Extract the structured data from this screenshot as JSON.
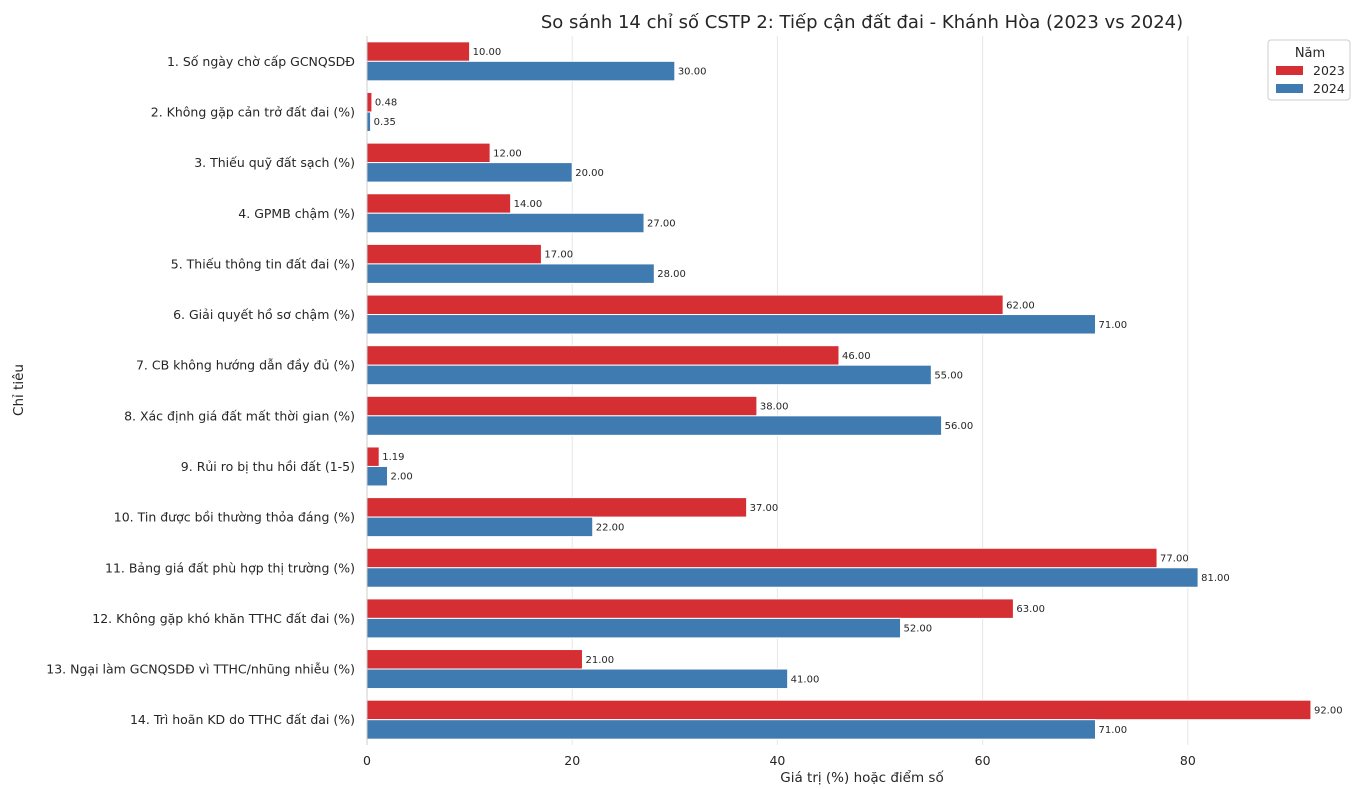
{
  "chart_data": {
    "type": "bar",
    "orientation": "horizontal",
    "title": "So sánh 14 chỉ số CSTP 2: Tiếp cận đất đai - Khánh Hòa (2023 vs 2024)",
    "xlabel": "Giá trị (%) hoặc điểm số",
    "ylabel": "Chỉ tiêu",
    "xlim": [
      0,
      96
    ],
    "xticks": [
      0,
      20,
      40,
      60,
      80
    ],
    "grid": true,
    "legend": {
      "title": "Năm",
      "position": "top-right"
    },
    "categories": [
      "1. Số ngày chờ cấp GCNQSDĐ",
      "2. Không gặp cản trở đất đai (%)",
      "3. Thiếu quỹ đất sạch (%)",
      "4. GPMB chậm (%)",
      "5. Thiếu thông tin đất đai (%)",
      "6. Giải quyết hồ sơ chậm (%)",
      "7. CB không hướng dẫn đầy đủ (%)",
      "8. Xác định giá đất mất thời gian (%)",
      "9. Rủi ro bị thu hồi đất (1-5)",
      "10. Tin được bồi thường thỏa đáng (%)",
      "11. Bảng giá đất phù hợp thị trường (%)",
      "12. Không gặp khó khăn TTHC đất đai (%)",
      "13. Ngại làm GCNQSDĐ vì TTHC/nhũng nhiễu (%)",
      "14. Trì hoãn KD do TTHC đất đai (%)"
    ],
    "series": [
      {
        "name": "2023",
        "color": "#d62f33",
        "values": [
          10.0,
          0.48,
          12.0,
          14.0,
          17.0,
          62.0,
          46.0,
          38.0,
          1.19,
          37.0,
          77.0,
          63.0,
          21.0,
          92.0
        ],
        "labels": [
          "10.00",
          "0.48",
          "12.00",
          "14.00",
          "17.00",
          "62.00",
          "46.00",
          "38.00",
          "1.19",
          "37.00",
          "77.00",
          "63.00",
          "21.00",
          "92.00"
        ]
      },
      {
        "name": "2024",
        "color": "#3f7bb0",
        "values": [
          30.0,
          0.35,
          20.0,
          27.0,
          28.0,
          71.0,
          55.0,
          56.0,
          2.0,
          22.0,
          81.0,
          52.0,
          41.0,
          71.0
        ],
        "labels": [
          "30.00",
          "0.35",
          "20.00",
          "27.00",
          "28.00",
          "71.00",
          "55.00",
          "56.00",
          "2.00",
          "22.00",
          "81.00",
          "52.00",
          "41.00",
          "71.00"
        ]
      }
    ]
  }
}
